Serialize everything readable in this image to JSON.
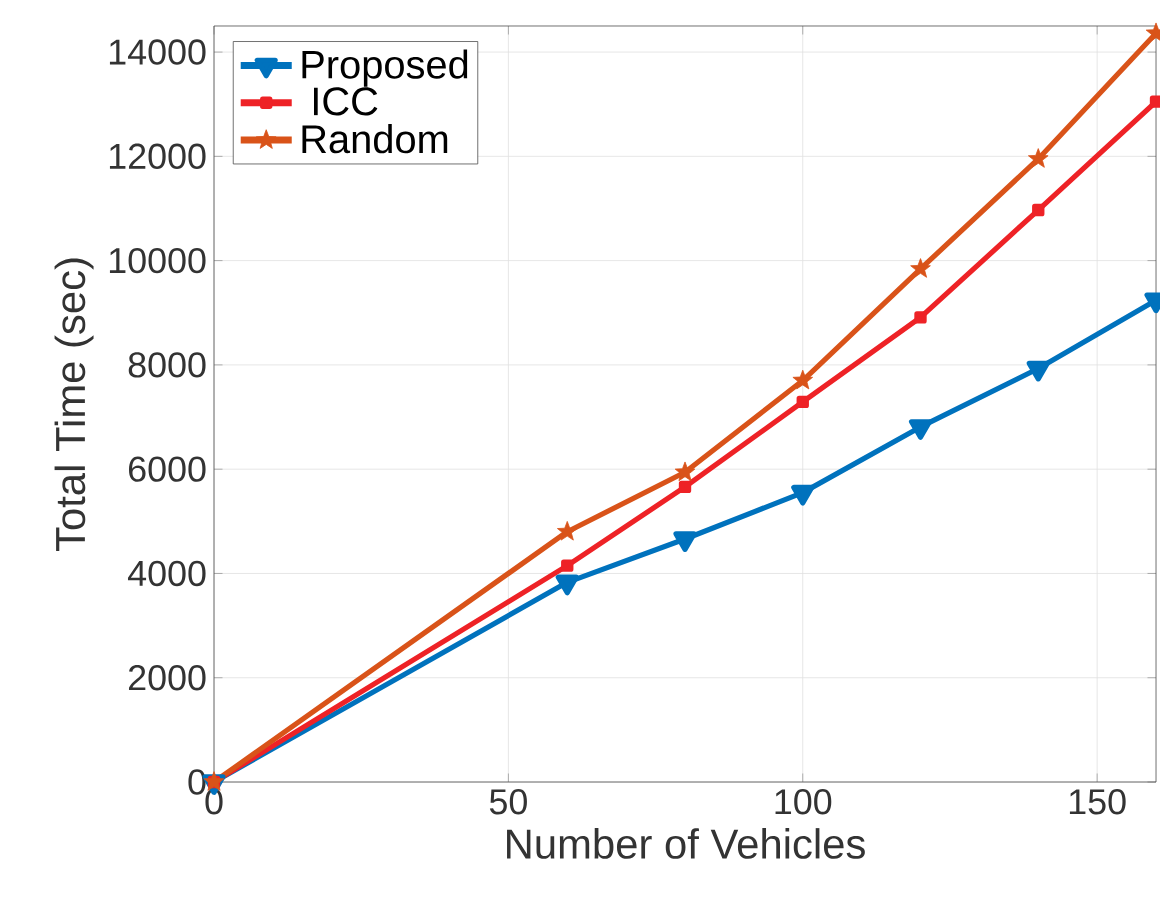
{
  "chart_data": {
    "type": "line",
    "xlabel": "Number of Vehicles",
    "ylabel": "Total Time (sec)",
    "x": [
      0,
      60,
      80,
      100,
      120,
      140,
      160
    ],
    "series": [
      {
        "name": "Proposed",
        "color": "#0072bd",
        "marker": "triangle",
        "values": [
          0,
          3830,
          4660,
          5550,
          6810,
          7930,
          9240
        ]
      },
      {
        "name": " ICC",
        "color": "#ee2226",
        "marker": "square",
        "values": [
          0,
          4150,
          5660,
          7290,
          8910,
          10970,
          13050
        ]
      },
      {
        "name": "Random",
        "color": "#d95319",
        "marker": "star",
        "values": [
          0,
          4800,
          5940,
          7700,
          9840,
          11950,
          14360
        ]
      }
    ],
    "xlim": [
      0,
      160
    ],
    "ylim": [
      0,
      14500
    ],
    "xticks": [
      0,
      50,
      100,
      150
    ],
    "yticks": [
      0,
      2000,
      4000,
      6000,
      8000,
      10000,
      12000,
      14000
    ],
    "grid": true,
    "legend": "top left",
    "line_style": "solid"
  }
}
